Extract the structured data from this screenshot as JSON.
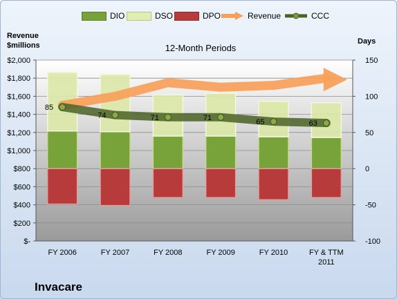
{
  "legend": {
    "dio": "DIO",
    "dso": "DSO",
    "dpo": "DPO",
    "revenue": "Revenue",
    "ccc": "CCC"
  },
  "company": "Invacare",
  "colors": {
    "dio": "#77a33a",
    "dso": "#dbe8a8",
    "dpo": "#b83b3b",
    "revenue": "#f7a05a",
    "ccc": "#4a6127",
    "plot_bg_top": "#ffffff",
    "plot_bg_bottom": "#9a9a9a"
  },
  "chart_data": {
    "type": "bar",
    "title": "12-Month Periods",
    "categories": [
      "FY 2006",
      "FY 2007",
      "FY 2008",
      "FY 2009",
      "FY 2010",
      "FY & TTM 2011"
    ],
    "ylabel_left": "Revenue $millions",
    "ylabel_right": "Days",
    "ylim_left": [
      0,
      2000
    ],
    "ylim_right": [
      -100,
      150
    ],
    "yticks_left": [
      "$-",
      "$200",
      "$400",
      "$600",
      "$800",
      "$1,000",
      "$1,200",
      "$1,400",
      "$1,600",
      "$1,800",
      "$2,000"
    ],
    "yticks_right": [
      "-100",
      "-50",
      "0",
      "50",
      "100",
      "150"
    ],
    "stacked_days": true,
    "series": [
      {
        "name": "DIO",
        "axis": "right",
        "values": [
          52,
          51,
          45,
          45,
          44,
          43
        ]
      },
      {
        "name": "DSO",
        "axis": "right",
        "values": [
          81,
          79,
          57,
          59,
          49,
          48
        ]
      },
      {
        "name": "DPO",
        "axis": "right",
        "values": [
          -49,
          -51,
          -40,
          -40,
          -43,
          -40
        ]
      },
      {
        "name": "Revenue",
        "axis": "left",
        "values": [
          1500,
          1600,
          1750,
          1700,
          1720,
          1800
        ]
      },
      {
        "name": "CCC",
        "axis": "right",
        "values": [
          85,
          74,
          71,
          71,
          65,
          63
        ],
        "labels": [
          "85",
          "74",
          "71",
          "71",
          "65",
          "63"
        ]
      }
    ],
    "legend_position": "top",
    "grid": true
  }
}
